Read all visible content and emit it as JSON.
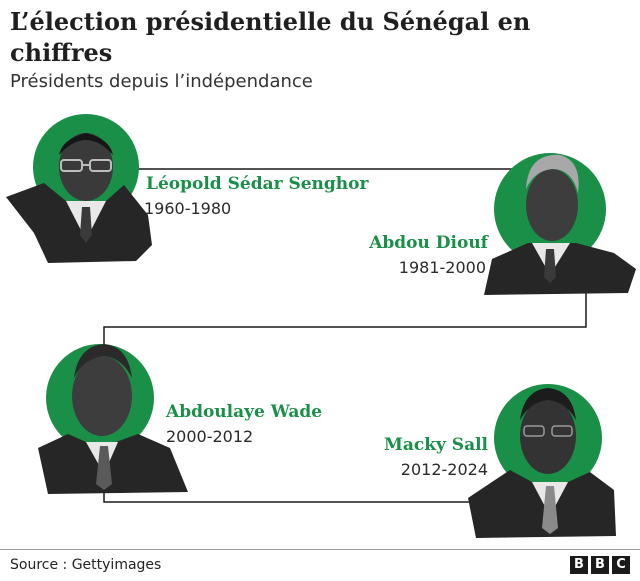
{
  "title": "L’élection présidentielle du Sénégal en chiffres",
  "subtitle": "Présidents depuis l’indépendance",
  "accent_color": "#1a8f47",
  "connector_color": "#1a1a1a",
  "presidents": [
    {
      "name": "Léopold Sédar Senghor",
      "term": "1960-1980"
    },
    {
      "name": "Abdou Diouf",
      "term": "1981-2000"
    },
    {
      "name": "Abdoulaye Wade",
      "term": "2000-2012"
    },
    {
      "name": "Macky Sall",
      "term": "2012-2024"
    }
  ],
  "footer": {
    "source": "Source : Gettyimages",
    "logo_letters": [
      "B",
      "B",
      "C"
    ]
  }
}
